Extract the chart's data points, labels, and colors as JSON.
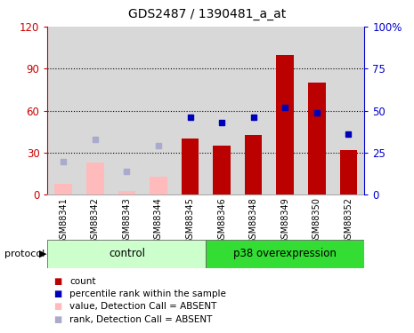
{
  "title": "GDS2487 / 1390481_a_at",
  "samples": [
    "GSM88341",
    "GSM88342",
    "GSM88343",
    "GSM88344",
    "GSM88345",
    "GSM88346",
    "GSM88348",
    "GSM88349",
    "GSM88350",
    "GSM88352"
  ],
  "bar_values": [
    8,
    23,
    3,
    13,
    40,
    35,
    43,
    100,
    80,
    32
  ],
  "rank_values": [
    20,
    33,
    14,
    29,
    46,
    43,
    46,
    52,
    49,
    36
  ],
  "absent_flags": [
    true,
    true,
    true,
    true,
    false,
    false,
    false,
    false,
    false,
    false
  ],
  "groups": [
    {
      "label": "control",
      "start": 0,
      "end": 5,
      "color": "#ccffcc"
    },
    {
      "label": "p38 overexpression",
      "start": 5,
      "end": 10,
      "color": "#33dd33"
    }
  ],
  "ylim_left": [
    0,
    120
  ],
  "ylim_right": [
    0,
    100
  ],
  "yticks_left": [
    0,
    30,
    60,
    90,
    120
  ],
  "ytick_labels_left": [
    "0",
    "30",
    "60",
    "90",
    "120"
  ],
  "yticks_right": [
    0,
    25,
    50,
    75,
    100
  ],
  "ytick_labels_right": [
    "0",
    "25",
    "50",
    "75",
    "100%"
  ],
  "bar_color_present": "#bb0000",
  "bar_color_absent": "#ffbbbb",
  "rank_color_present": "#0000bb",
  "rank_color_absent": "#aaaacc",
  "bar_width": 0.55,
  "background_color": "#ffffff",
  "grid_color": "#000000",
  "left_axis_color": "#cc0000",
  "right_axis_color": "#0000cc",
  "col_bg_color": "#d8d8d8"
}
